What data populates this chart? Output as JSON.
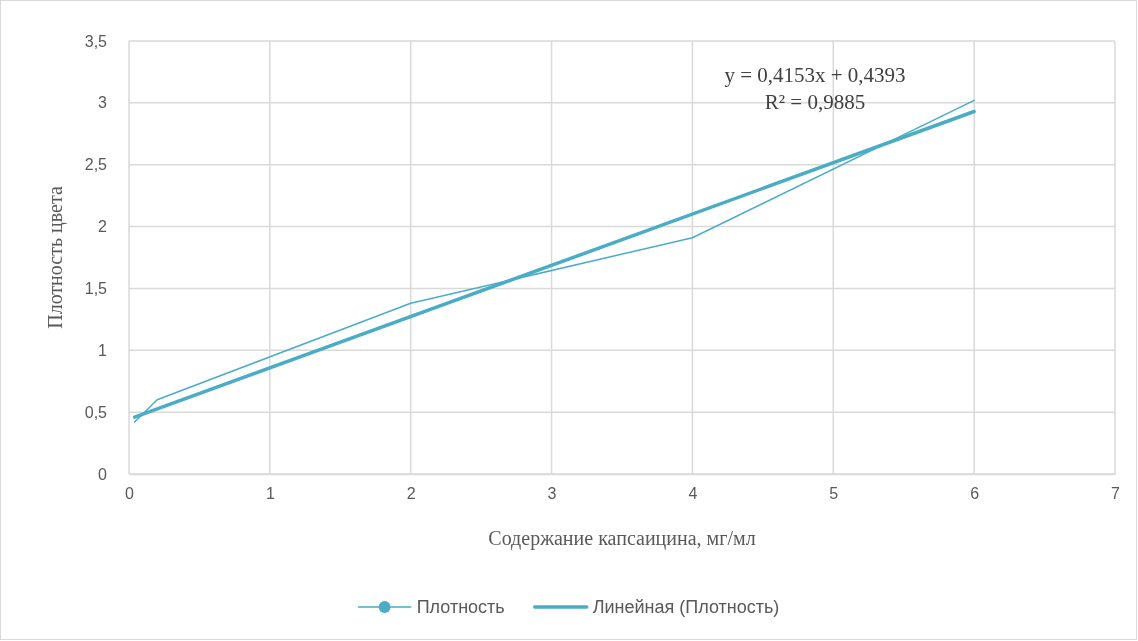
{
  "chart_data": {
    "type": "line",
    "xlabel": "Содержание капсаицина,  мг/мл",
    "ylabel": "Плотность цвета",
    "xlim": [
      0,
      7
    ],
    "xticks": [
      0,
      1,
      2,
      3,
      4,
      5,
      6,
      7
    ],
    "ylim": [
      0,
      3.5
    ],
    "yticks": [
      0,
      {
        "value": 0.5,
        "label": "0,5"
      },
      1,
      {
        "value": 1.5,
        "label": "1,5"
      },
      2,
      {
        "value": 2.5,
        "label": "2,5"
      },
      3,
      {
        "value": 3.5,
        "label": "3,5"
      }
    ],
    "grid": true,
    "legend": "bottom",
    "line_style": "solid",
    "series": [
      {
        "name": "Плотность",
        "color": "#4bacc6",
        "x": [
          0.04,
          0.2,
          2,
          4,
          6
        ],
        "values": [
          0.42,
          0.6,
          1.38,
          1.91,
          3.02
        ]
      },
      {
        "name": "Линейная (Плотность)",
        "type": "line",
        "color": "#4bacc6",
        "x": [
          0.04,
          6
        ],
        "values": [
          0.46,
          2.93
        ]
      }
    ],
    "annotations": [
      "y = 0,4153x + 0,4393",
      "R² = 0,9885"
    ]
  }
}
